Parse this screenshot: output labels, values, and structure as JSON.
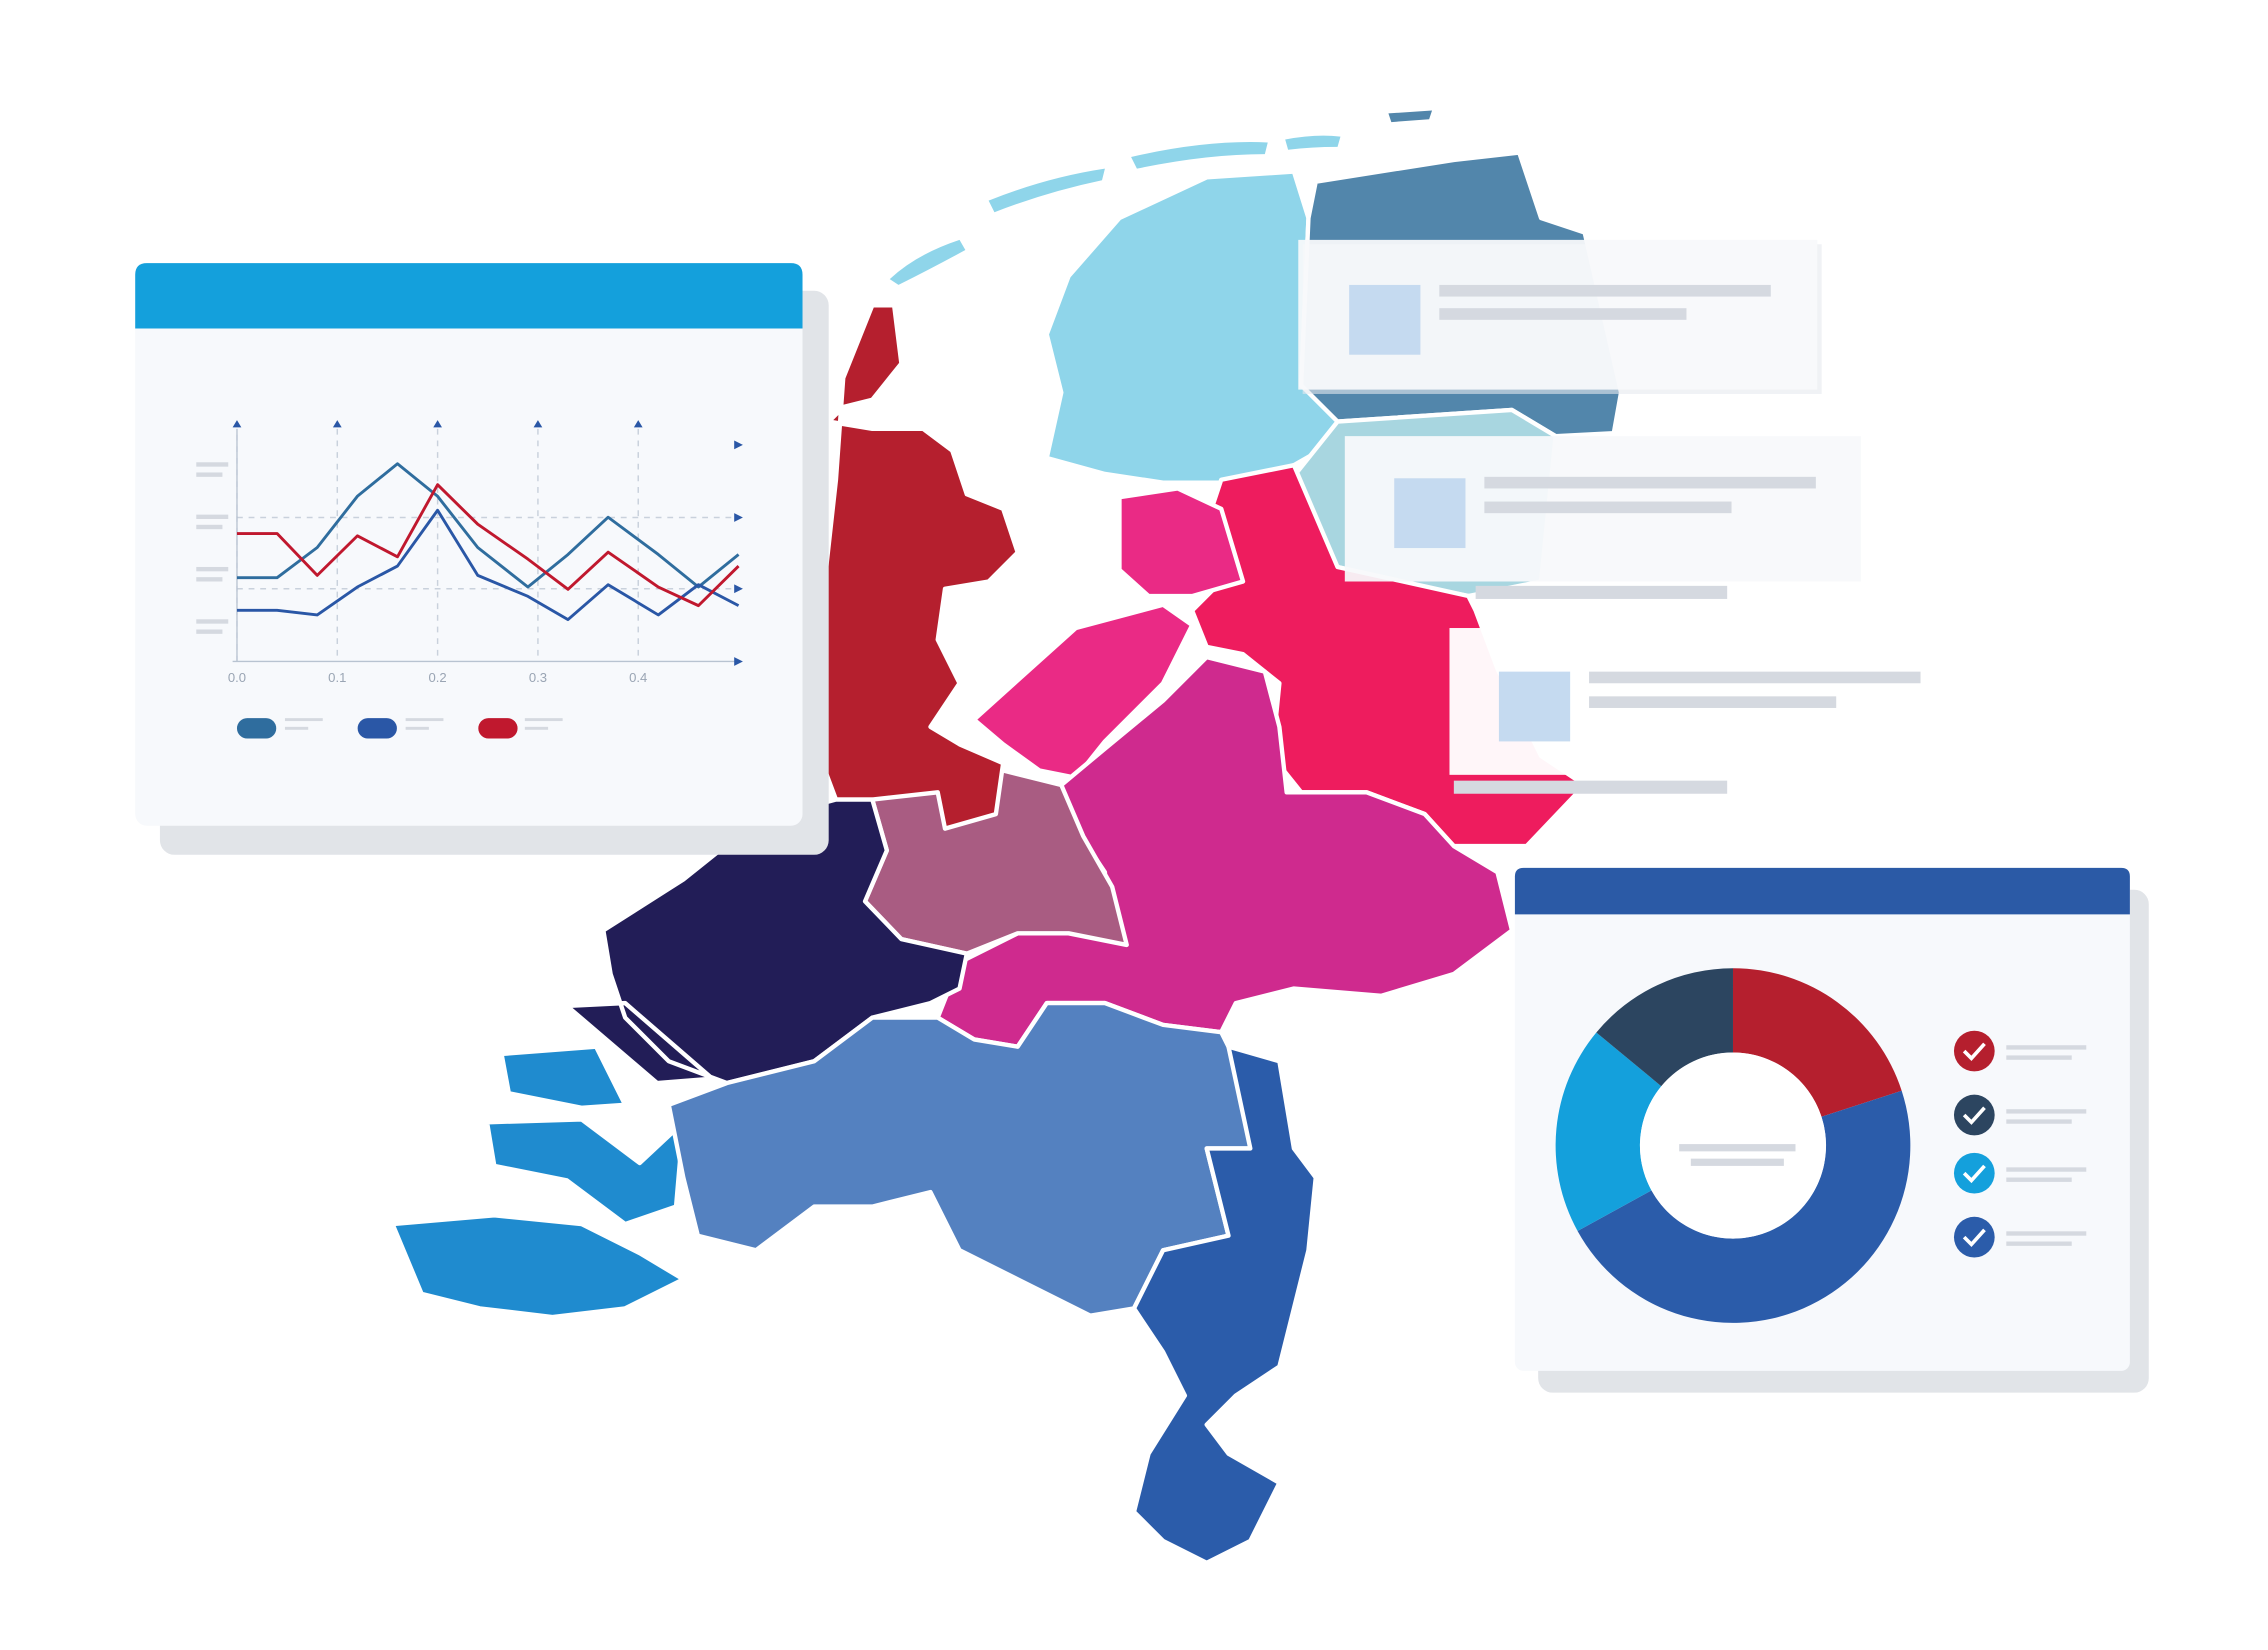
{
  "chart_data": [
    {
      "type": "line",
      "x": [
        0,
        0.04,
        0.08,
        0.12,
        0.16,
        0.2,
        0.24,
        0.29,
        0.33,
        0.37,
        0.42,
        0.46,
        0.5
      ],
      "series": [
        {
          "color": "#2f6d9e",
          "values": [
            3.6,
            3.6,
            4.9,
            7.1,
            8.5,
            7.1,
            4.9,
            3.2,
            4.6,
            6.2,
            4.6,
            3.2,
            4.6
          ]
        },
        {
          "color": "#2a57a6",
          "values": [
            2.2,
            2.2,
            2.0,
            3.2,
            4.1,
            6.5,
            3.7,
            2.8,
            1.8,
            3.3,
            2.0,
            3.3,
            2.4
          ]
        },
        {
          "color": "#c0182e",
          "values": [
            5.5,
            5.5,
            3.7,
            5.4,
            4.5,
            7.6,
            5.9,
            4.4,
            3.1,
            4.7,
            3.2,
            2.4,
            4.1
          ]
        }
      ],
      "xlim": [
        0,
        0.5
      ],
      "ylim": [
        0,
        10
      ],
      "xticks": [
        {
          "value": 0,
          "label": "0.0"
        },
        0.1,
        0.2,
        0.3,
        0.4
      ],
      "grid": true
    },
    {
      "type": "donut",
      "values": [
        20,
        47,
        19,
        14
      ],
      "colors": [
        "#b51f2e",
        "#2b5caa",
        "#14a0dc",
        "#2c4560"
      ]
    }
  ]
}
